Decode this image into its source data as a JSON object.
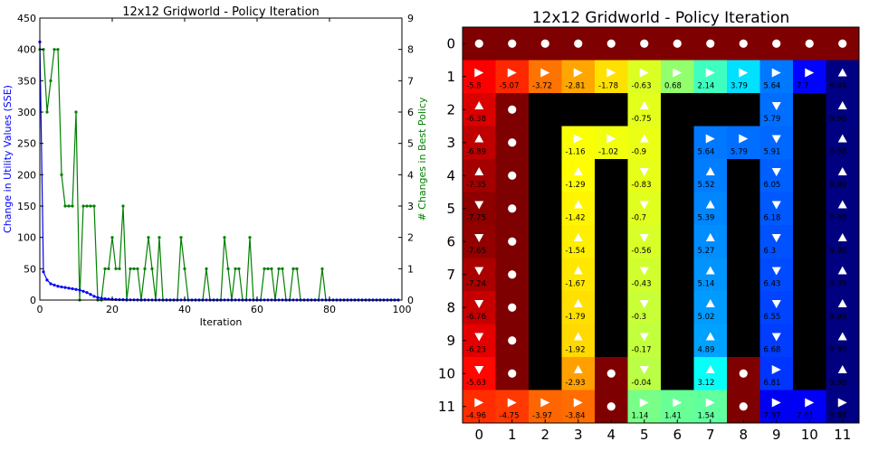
{
  "chart_data": [
    {
      "type": "line",
      "title": "12x12 Gridworld - Policy Iteration",
      "xlabel": "Iteration",
      "ylabel": "Change in Utility Values (SSE)",
      "y2label": "# Changes in Best Policy",
      "xlim": [
        0,
        100
      ],
      "ylim": [
        0,
        450
      ],
      "y2lim": [
        0,
        9
      ],
      "xticks": [
        0,
        20,
        40,
        60,
        80,
        100
      ],
      "yticks": [
        0,
        50,
        100,
        150,
        200,
        250,
        300,
        350,
        400,
        450
      ],
      "y2ticks": [
        0,
        1,
        2,
        3,
        4,
        5,
        6,
        7,
        8,
        9
      ],
      "series": [
        {
          "axis": "left",
          "color": "#0000ff",
          "values": [
            412,
            45,
            32,
            26,
            24,
            22,
            21,
            20,
            19,
            18,
            17,
            16,
            14,
            12,
            9,
            6,
            4,
            3,
            2,
            1.5,
            1,
            0.8,
            0.6,
            0.5,
            0.4,
            0.3,
            0.3,
            0.2,
            0.2,
            0.2,
            0.1,
            0.1,
            0.1,
            0.1,
            0.1,
            0.1,
            0.1,
            0.1,
            0.1,
            0.1,
            0.1,
            0.1,
            0.1,
            0.1,
            0.1,
            0.1,
            0.1,
            0.1,
            0.1,
            0.1,
            0.1,
            0.1,
            0.1,
            0.1,
            0.1,
            0.1,
            0.1,
            0.1,
            0.1,
            0.1,
            0.1,
            0.1,
            0.1,
            0.1,
            0.1,
            0.1,
            0.1,
            0.1,
            0.1,
            0.1,
            0.1,
            0.1,
            0.1,
            0.1,
            0.1,
            0.1,
            0.1,
            0.1,
            0.1,
            0.1,
            0.1,
            0.1,
            0.1,
            0.1,
            0.1,
            0.1,
            0.1,
            0.1,
            0.1,
            0.1,
            0.1,
            0.1,
            0.1,
            0.1,
            0.1,
            0.1,
            0.1,
            0.1,
            0.1,
            0.1
          ]
        },
        {
          "axis": "right",
          "color": "#008000",
          "values": [
            8,
            8,
            6,
            7,
            8,
            8,
            4,
            3,
            3,
            3,
            6,
            0,
            3,
            3,
            3,
            3,
            0,
            0,
            1,
            1,
            2,
            1,
            1,
            3,
            0,
            1,
            1,
            1,
            0,
            1,
            2,
            1,
            0,
            2,
            0,
            0,
            0,
            0,
            0,
            2,
            1,
            0,
            0,
            0,
            0,
            0,
            1,
            0,
            0,
            0,
            0,
            2,
            1,
            0,
            1,
            1,
            0,
            0,
            2,
            0,
            0,
            0,
            1,
            1,
            1,
            0,
            1,
            1,
            0,
            0,
            1,
            1,
            0,
            0,
            0,
            0,
            0,
            0,
            1,
            0,
            0,
            0,
            0,
            0,
            0,
            0,
            0,
            0,
            0,
            0,
            0,
            0,
            0,
            0,
            0,
            0,
            0,
            0,
            0,
            0
          ]
        }
      ]
    },
    {
      "type": "heatmap",
      "title": "12x12 Gridworld - Policy Iteration",
      "xticks": [
        "0",
        "1",
        "2",
        "3",
        "4",
        "5",
        "6",
        "7",
        "8",
        "9",
        "10",
        "11"
      ],
      "yticks": [
        "0",
        "1",
        "2",
        "3",
        "4",
        "5",
        "6",
        "7",
        "8",
        "9",
        "10",
        "11"
      ],
      "colors": {
        "wall": "#000000",
        "blocked": "#7f0000",
        "goal": "#00007f",
        "marker": "#ffffff"
      },
      "rows": [
        [
          "X",
          "X",
          "X",
          "X",
          "X",
          "X",
          "X",
          "X",
          "X",
          "X",
          "X",
          "X"
        ],
        [
          "R:-5.8",
          "R:-5.07",
          "R:-3.72",
          "R:-2.81",
          "R:-1.78",
          "R:-0.63",
          "R:0.68",
          "R:2.14",
          "R:3.79",
          "R:5.64",
          "R:7.7",
          "U:9.94"
        ],
        [
          "U:-6.38",
          "X",
          "W",
          "W",
          "W",
          "U:-0.75",
          "W",
          "W",
          "W",
          "D:5.79",
          "W",
          "U:9.96"
        ],
        [
          "U:-6.89",
          "X",
          "W",
          "R:-1.16",
          "R:-1.02",
          "U:-0.9",
          "W",
          "R:5.64",
          "R:5.79",
          "D:5.91",
          "W",
          "U:9.98"
        ],
        [
          "U:-7.35",
          "X",
          "W",
          "U:-1.29",
          "W",
          "D:-0.83",
          "W",
          "U:5.52",
          "W",
          "D:6.05",
          "W",
          "U:9.99"
        ],
        [
          "D:-7.75",
          "X",
          "W",
          "U:-1.42",
          "W",
          "D:-0.7",
          "W",
          "U:5.39",
          "W",
          "D:6.18",
          "W",
          "U:9.99"
        ],
        [
          "D:-7.65",
          "X",
          "W",
          "U:-1.54",
          "W",
          "D:-0.56",
          "W",
          "U:5.27",
          "W",
          "D:6.3",
          "W",
          "U:9.99"
        ],
        [
          "D:-7.24",
          "X",
          "W",
          "U:-1.67",
          "W",
          "D:-0.43",
          "W",
          "U:5.14",
          "W",
          "D:6.43",
          "W",
          "U:9.99"
        ],
        [
          "D:-6.76",
          "X",
          "W",
          "U:-1.79",
          "W",
          "D:-0.3",
          "W",
          "U:5.02",
          "W",
          "D:6.55",
          "W",
          "U:9.99"
        ],
        [
          "D:-6.23",
          "X",
          "W",
          "U:-1.92",
          "W",
          "D:-0.17",
          "W",
          "U:4.89",
          "W",
          "D:6.68",
          "W",
          "U:9.99"
        ],
        [
          "D:-5.63",
          "X",
          "W",
          "U:-2.93",
          "X",
          "D:-0.04",
          "W",
          "U:3.12",
          "X",
          "R:6.81",
          "W",
          "U:9.98"
        ],
        [
          "R:-4.96",
          "R:-4.75",
          "R:-3.97",
          "R:-3.84",
          "X",
          "R:1.14",
          "R:1.41",
          "R:1.54",
          "X",
          "R:7.97",
          "R:7.91",
          "R:9.88"
        ]
      ]
    }
  ]
}
